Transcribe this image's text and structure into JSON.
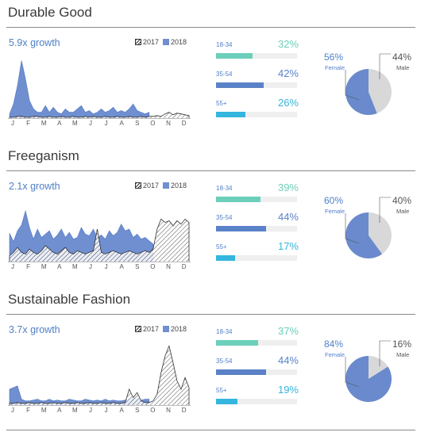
{
  "legend": {
    "label_2017": "2017",
    "label_2018": "2018"
  },
  "colors": {
    "series_2018": "#6f8fd0",
    "series_2018_stroke": "#4f76c3",
    "hatch": "#333333",
    "age_18_34": "#6ccfbb",
    "age_35_54": "#5b82c8",
    "age_55_plus": "#34b6de",
    "pie_female": "#6a8acd",
    "pie_male": "#d8d8d8"
  },
  "chart_data": [
    {
      "type": "area",
      "title": "Durable Good",
      "subtitle": "5.9x growth",
      "months": [
        "J",
        "F",
        "M",
        "A",
        "M",
        "J",
        "J",
        "A",
        "S",
        "O",
        "N",
        "D"
      ],
      "x": [
        0,
        0.25,
        0.5,
        0.75,
        1,
        1.25,
        1.5,
        1.75,
        2,
        2.25,
        2.5,
        2.75,
        3,
        3.25,
        3.5,
        3.75,
        4,
        4.25,
        4.5,
        4.75,
        5,
        5.25,
        5.5,
        5.75,
        6,
        6.25,
        6.5,
        6.75,
        7,
        7.25,
        7.5,
        7.75,
        8,
        8.25,
        8.5,
        8.75,
        9,
        9.25,
        9.5,
        9.75,
        10,
        10.25,
        10.5,
        10.75,
        11,
        11.25
      ],
      "series": [
        {
          "name": "2018",
          "values": [
            6,
            18,
            40,
            70,
            48,
            22,
            12,
            8,
            8,
            16,
            8,
            14,
            8,
            6,
            12,
            8,
            8,
            12,
            16,
            8,
            10,
            6,
            8,
            12,
            8,
            10,
            14,
            8,
            10,
            8,
            12,
            18,
            10,
            8,
            6,
            8,
            null,
            null,
            null,
            null,
            null,
            null,
            null,
            null,
            null,
            null
          ]
        },
        {
          "name": "2017",
          "values": [
            2,
            2,
            3,
            3,
            2,
            2,
            3,
            3,
            2,
            2,
            3,
            2,
            2,
            3,
            2,
            2,
            3,
            2,
            2,
            3,
            2,
            3,
            2,
            2,
            3,
            2,
            2,
            3,
            2,
            2,
            3,
            2,
            2,
            3,
            2,
            3,
            3,
            4,
            3,
            6,
            8,
            5,
            7,
            6,
            5,
            4
          ]
        }
      ],
      "ylim": [
        0,
        80
      ],
      "age": [
        {
          "label": "18-34",
          "pct": "32%",
          "value": 32
        },
        {
          "label": "35-54",
          "pct": "42%",
          "value": 42
        },
        {
          "label": "55+",
          "pct": "26%",
          "value": 26
        }
      ],
      "gender": [
        {
          "label": "Female",
          "pct": "56%",
          "value": 56
        },
        {
          "label": "Male",
          "pct": "44%",
          "value": 44
        }
      ]
    },
    {
      "type": "area",
      "title": "Freeganism",
      "subtitle": "2.1x growth",
      "months": [
        "J",
        "F",
        "M",
        "A",
        "M",
        "J",
        "J",
        "A",
        "S",
        "O",
        "N",
        "D"
      ],
      "x": [
        0,
        0.25,
        0.5,
        0.75,
        1,
        1.25,
        1.5,
        1.75,
        2,
        2.25,
        2.5,
        2.75,
        3,
        3.25,
        3.5,
        3.75,
        4,
        4.25,
        4.5,
        4.75,
        5,
        5.25,
        5.5,
        5.75,
        6,
        6.25,
        6.5,
        6.75,
        7,
        7.25,
        7.5,
        7.75,
        8,
        8.25,
        8.5,
        8.75,
        9,
        9.25,
        9.5,
        9.75,
        10,
        10.25,
        10.5,
        10.75,
        11,
        11.25
      ],
      "series": [
        {
          "name": "2018",
          "values": [
            35,
            25,
            38,
            45,
            62,
            42,
            28,
            40,
            30,
            34,
            38,
            28,
            33,
            40,
            30,
            36,
            28,
            30,
            42,
            34,
            32,
            40,
            30,
            33,
            28,
            38,
            32,
            36,
            46,
            38,
            40,
            30,
            34,
            28,
            30,
            26,
            22,
            null,
            null,
            null,
            null,
            null,
            null,
            null,
            null,
            null
          ]
        },
        {
          "name": "2017",
          "values": [
            8,
            12,
            18,
            12,
            10,
            16,
            12,
            10,
            14,
            20,
            16,
            12,
            10,
            14,
            18,
            12,
            10,
            14,
            12,
            10,
            12,
            14,
            40,
            12,
            10,
            12,
            14,
            12,
            10,
            12,
            14,
            12,
            10,
            12,
            14,
            12,
            16,
            40,
            52,
            48,
            50,
            44,
            50,
            46,
            52,
            48
          ]
        }
      ],
      "ylim": [
        0,
        80
      ],
      "age": [
        {
          "label": "18-34",
          "pct": "39%",
          "value": 39
        },
        {
          "label": "35-54",
          "pct": "44%",
          "value": 44
        },
        {
          "label": "55+",
          "pct": "17%",
          "value": 17
        }
      ],
      "gender": [
        {
          "label": "Female",
          "pct": "60%",
          "value": 60
        },
        {
          "label": "Male",
          "pct": "40%",
          "value": 40
        }
      ]
    },
    {
      "type": "area",
      "title": "Sustainable Fashion",
      "subtitle": "3.7x growth",
      "months": [
        "J",
        "F",
        "M",
        "A",
        "M",
        "J",
        "J",
        "A",
        "S",
        "O",
        "N",
        "D"
      ],
      "x": [
        0,
        0.25,
        0.5,
        0.75,
        1,
        1.25,
        1.5,
        1.75,
        2,
        2.25,
        2.5,
        2.75,
        3,
        3.25,
        3.5,
        3.75,
        4,
        4.25,
        4.5,
        4.75,
        5,
        5.25,
        5.5,
        5.75,
        6,
        6.25,
        6.5,
        6.75,
        7,
        7.25,
        7.5,
        7.75,
        8,
        8.25,
        8.5,
        8.75,
        9,
        9.25,
        9.5,
        9.75,
        10,
        10.25,
        10.5,
        10.75,
        11,
        11.25
      ],
      "series": [
        {
          "name": "2018",
          "values": [
            20,
            22,
            24,
            8,
            6,
            6,
            7,
            8,
            6,
            6,
            8,
            6,
            7,
            6,
            6,
            8,
            7,
            6,
            6,
            8,
            7,
            6,
            7,
            6,
            8,
            6,
            7,
            6,
            6,
            7,
            8,
            10,
            8,
            7,
            8,
            8,
            null,
            null,
            null,
            null,
            null,
            null,
            null,
            null,
            null,
            null
          ]
        },
        {
          "name": "2017",
          "values": [
            3,
            3,
            4,
            3,
            3,
            4,
            3,
            3,
            4,
            3,
            3,
            4,
            3,
            3,
            4,
            3,
            3,
            4,
            3,
            3,
            4,
            3,
            3,
            4,
            3,
            3,
            4,
            3,
            3,
            4,
            20,
            10,
            16,
            6,
            4,
            4,
            6,
            14,
            40,
            60,
            72,
            52,
            30,
            20,
            34,
            22
          ]
        }
      ],
      "ylim": [
        0,
        80
      ],
      "age": [
        {
          "label": "18-34",
          "pct": "37%",
          "value": 37
        },
        {
          "label": "35-54",
          "pct": "44%",
          "value": 44
        },
        {
          "label": "55+",
          "pct": "19%",
          "value": 19
        }
      ],
      "gender": [
        {
          "label": "Female",
          "pct": "84%",
          "value": 84
        },
        {
          "label": "Male",
          "pct": "16%",
          "value": 16
        }
      ]
    }
  ]
}
